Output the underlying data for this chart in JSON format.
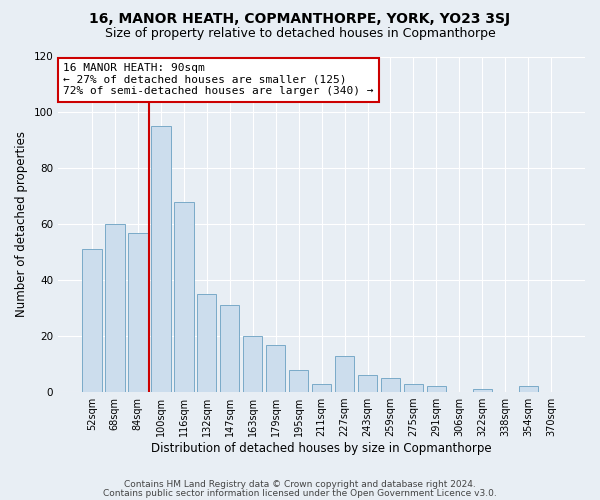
{
  "title": "16, MANOR HEATH, COPMANTHORPE, YORK, YO23 3SJ",
  "subtitle": "Size of property relative to detached houses in Copmanthorpe",
  "xlabel": "Distribution of detached houses by size in Copmanthorpe",
  "ylabel": "Number of detached properties",
  "categories": [
    "52sqm",
    "68sqm",
    "84sqm",
    "100sqm",
    "116sqm",
    "132sqm",
    "147sqm",
    "163sqm",
    "179sqm",
    "195sqm",
    "211sqm",
    "227sqm",
    "243sqm",
    "259sqm",
    "275sqm",
    "291sqm",
    "306sqm",
    "322sqm",
    "338sqm",
    "354sqm",
    "370sqm"
  ],
  "values": [
    51,
    60,
    57,
    95,
    68,
    35,
    31,
    20,
    17,
    8,
    3,
    13,
    6,
    5,
    3,
    2,
    0,
    1,
    0,
    2,
    0
  ],
  "bar_color": "#ccdded",
  "bar_edge_color": "#7aaac8",
  "background_color": "#e8eef4",
  "plot_bg_color": "#e8eef4",
  "grid_color": "#ffffff",
  "annotation_line1": "16 MANOR HEATH: 90sqm",
  "annotation_line2": "← 27% of detached houses are smaller (125)",
  "annotation_line3": "72% of semi-detached houses are larger (340) →",
  "annotation_box_facecolor": "#ffffff",
  "annotation_box_edgecolor": "#cc0000",
  "vline_color": "#cc0000",
  "vline_x_idx": 2.5,
  "ylim": [
    0,
    120
  ],
  "yticks": [
    0,
    20,
    40,
    60,
    80,
    100,
    120
  ],
  "footer1": "Contains HM Land Registry data © Crown copyright and database right 2024.",
  "footer2": "Contains public sector information licensed under the Open Government Licence v3.0.",
  "title_fontsize": 10,
  "subtitle_fontsize": 9,
  "ylabel_fontsize": 8.5,
  "xlabel_fontsize": 8.5,
  "tick_fontsize": 7,
  "annotation_fontsize": 8,
  "footer_fontsize": 6.5
}
